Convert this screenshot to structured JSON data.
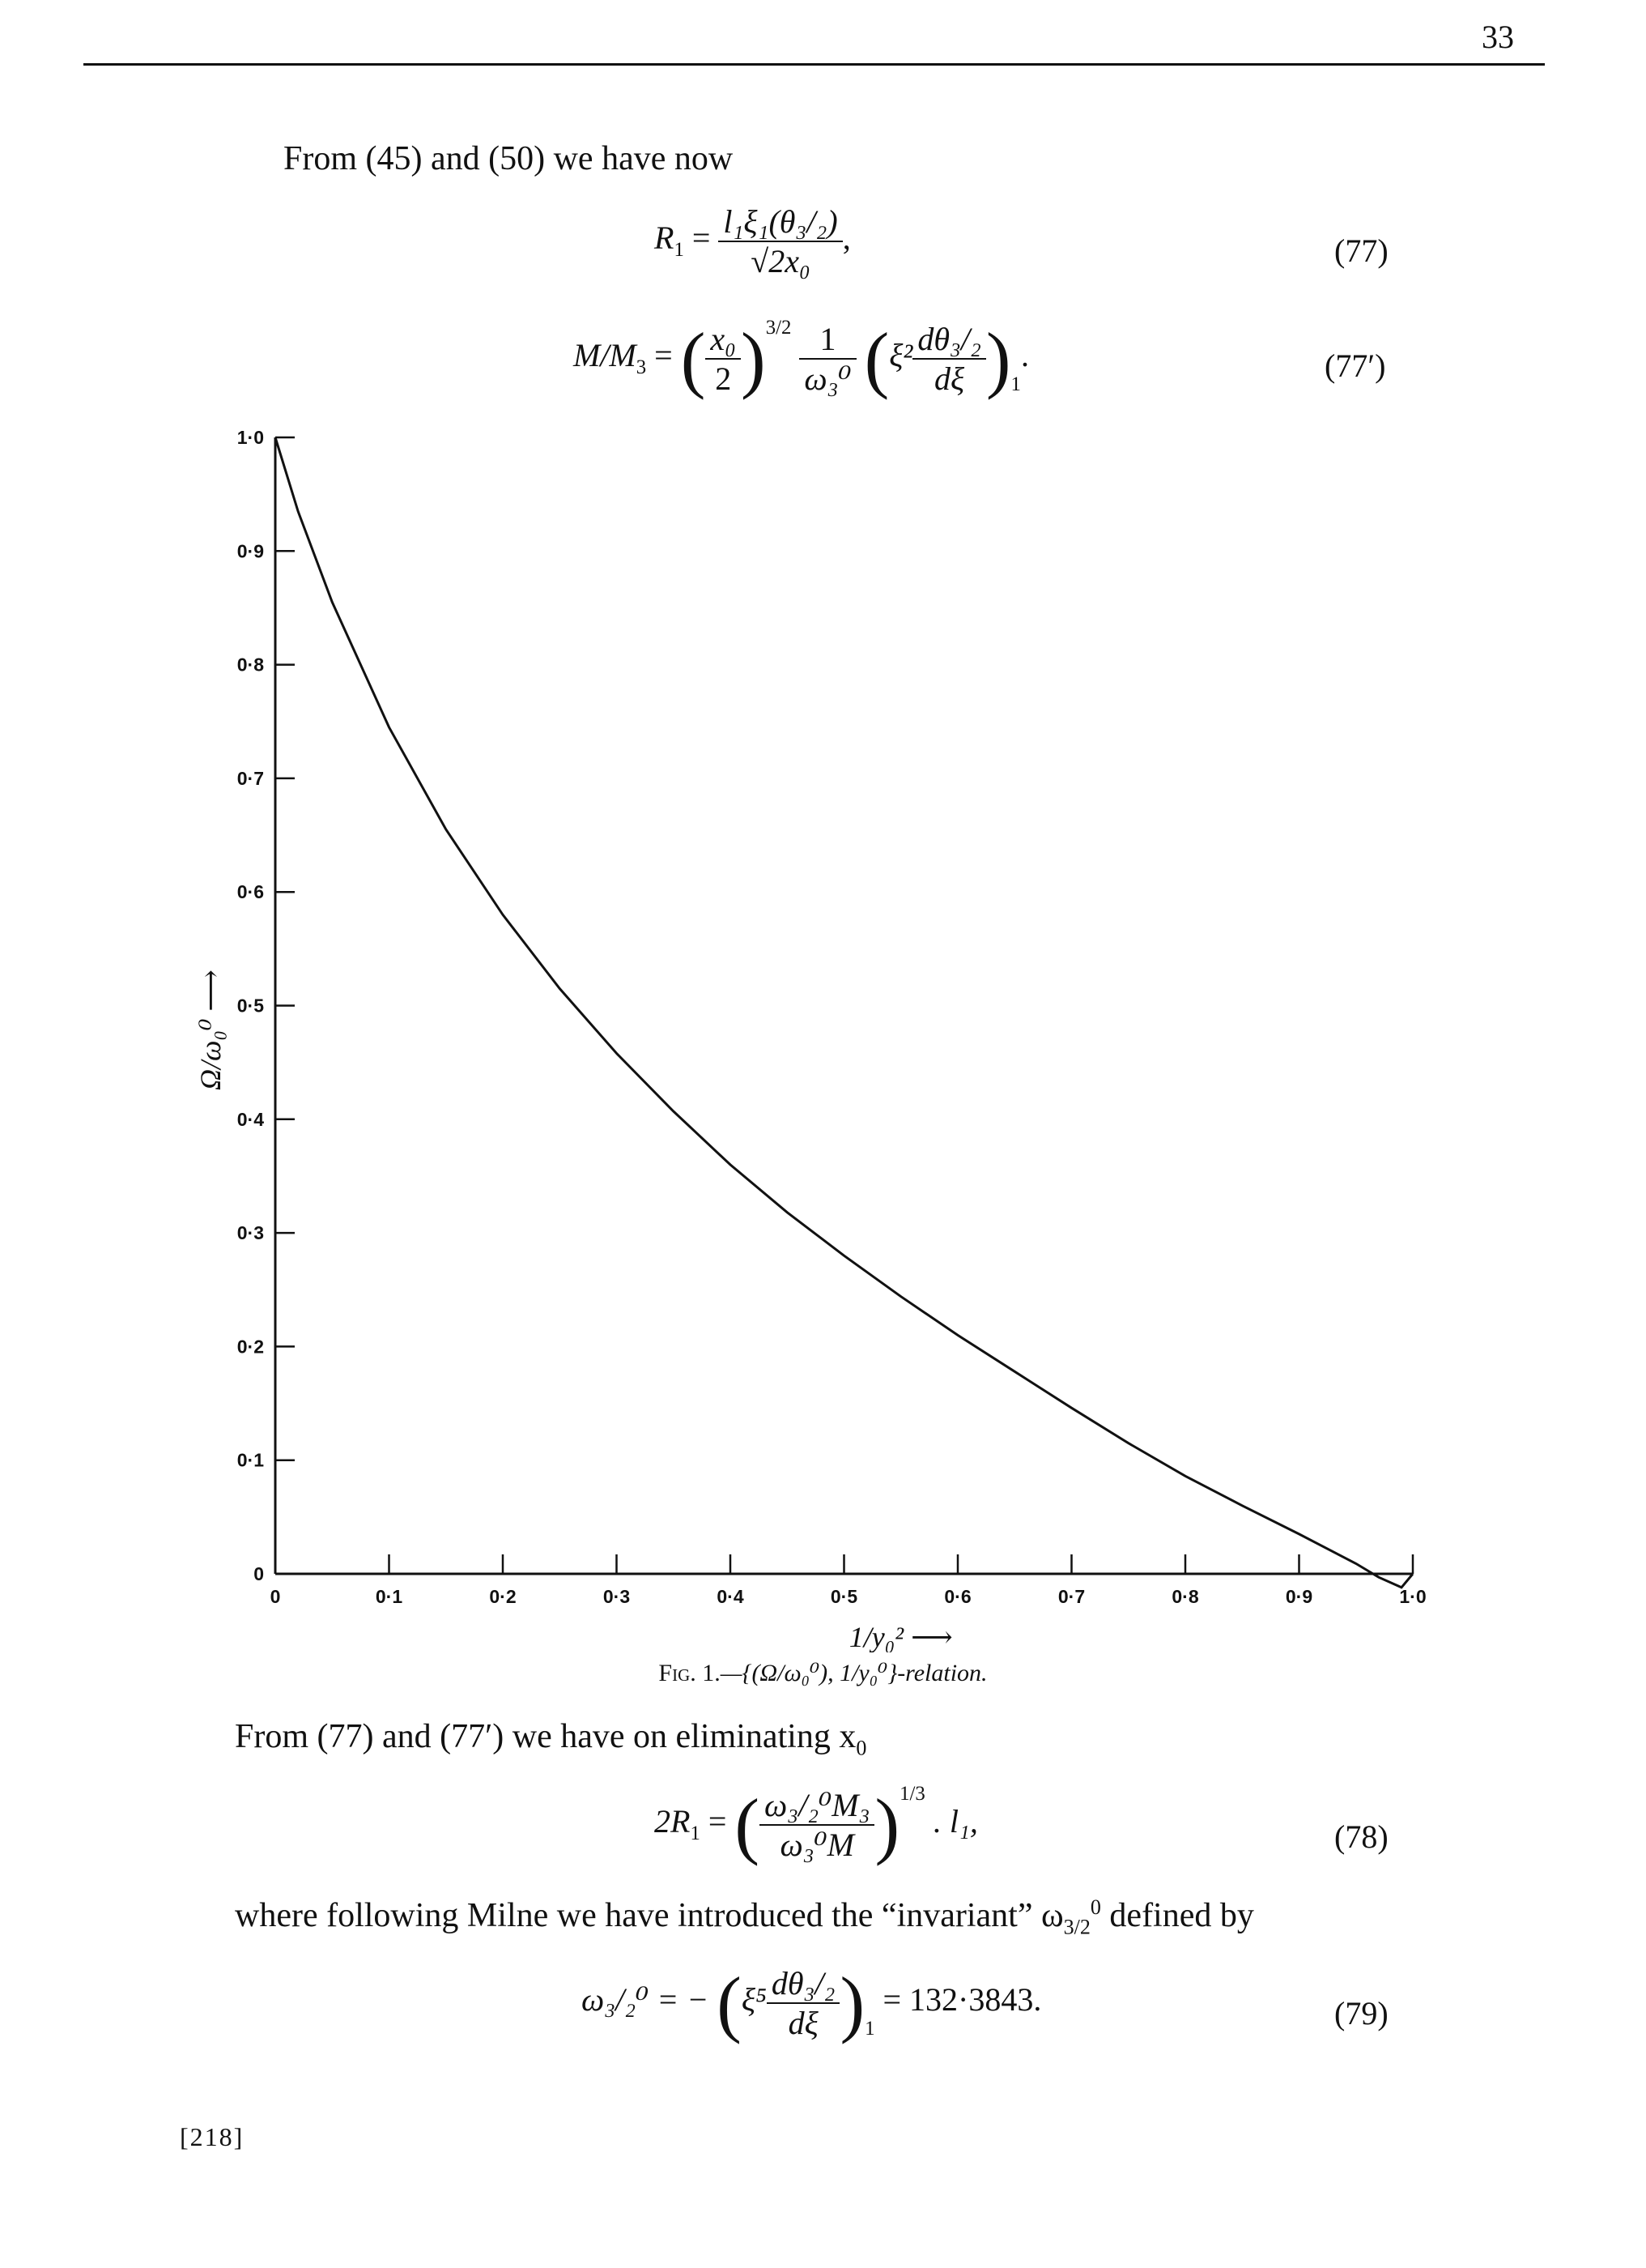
{
  "page": {
    "number": "33",
    "footer": "[218]"
  },
  "text": {
    "intro": "From (45) and (50) we have now",
    "eliminate": "From (77) and (77′) we have on eliminating x",
    "eliminate_sub": "0",
    "milne": "where following Milne we have introduced the “invariant” ω",
    "milne_sub": "3/2",
    "milne_sup": "0",
    "milne_end": " defined by"
  },
  "equations": {
    "eq77": {
      "lhs": "R",
      "lhs_sub": "1",
      "num": "l₁ξ₁(θ₃/₂)",
      "den": "√2x₀",
      "tail": ",",
      "number": "(77)"
    },
    "eq77p": {
      "lhs": "M/M",
      "lhs_sub": "3",
      "frac1_num": "x₀",
      "frac1_den": "2",
      "power": "3/2",
      "frac2_num": "1",
      "frac2_den": "ω₃⁰",
      "inner": "ξ²",
      "frac3_num": "dθ₃/₂",
      "frac3_den": "dξ",
      "subscript": "1",
      "tail": ".",
      "number": "(77′)"
    },
    "eq78": {
      "lhs": "2R",
      "lhs_sub": "1",
      "frac_num": "ω₃/₂⁰M₃",
      "frac_den": "ω₃⁰M",
      "power": "1/3",
      "tail": ". l₁,",
      "number": "(78)"
    },
    "eq79": {
      "lhs": "ω₃/₂⁰ = −",
      "inner": "ξ⁵",
      "frac_num": "dθ₃/₂",
      "frac_den": "dξ",
      "subscript": "1",
      "rhs": "= 132·3843.",
      "number": "(79)"
    }
  },
  "caption": {
    "prefix": "Fig. 1.",
    "body": "—{(Ω/ω₀⁰), 1/y₀⁰}-relation."
  },
  "chart_data": {
    "type": "line",
    "xlabel": "1/y₀² ⟶",
    "ylabel": "Ω/ω₀⁰ ⟶",
    "xlim": [
      0,
      1.0
    ],
    "ylim": [
      0,
      1.0
    ],
    "x_ticks": [
      0,
      0.1,
      0.2,
      0.3,
      0.4,
      0.5,
      0.6,
      0.7,
      0.8,
      0.9,
      1.0
    ],
    "x_tick_labels": [
      "0",
      "0·1",
      "0·2",
      "0·3",
      "0·4",
      "0·5",
      "0·6",
      "0·7",
      "0·8",
      "0·9",
      "1·0"
    ],
    "y_ticks": [
      0,
      0.1,
      0.2,
      0.3,
      0.4,
      0.5,
      0.6,
      0.7,
      0.8,
      0.9,
      1.0
    ],
    "y_tick_labels": [
      "0",
      "0·1",
      "0·2",
      "0·3",
      "0·4",
      "0·5",
      "0·6",
      "0·7",
      "0·8",
      "0·9",
      "1·0"
    ],
    "grid": false,
    "series": [
      {
        "x": [
          0,
          0.02,
          0.05,
          0.1,
          0.15,
          0.2,
          0.25,
          0.3,
          0.35,
          0.4,
          0.45,
          0.5,
          0.55,
          0.6,
          0.65,
          0.7,
          0.75,
          0.8,
          0.85,
          0.9,
          0.95,
          0.97,
          0.99,
          1.0
        ],
        "y": [
          1.0,
          0.935,
          0.855,
          0.745,
          0.655,
          0.58,
          0.515,
          0.458,
          0.407,
          0.36,
          0.318,
          0.28,
          0.244,
          0.21,
          0.178,
          0.146,
          0.115,
          0.086,
          0.06,
          0.035,
          0.009,
          -0.003,
          -0.012,
          0.0
        ]
      }
    ]
  }
}
